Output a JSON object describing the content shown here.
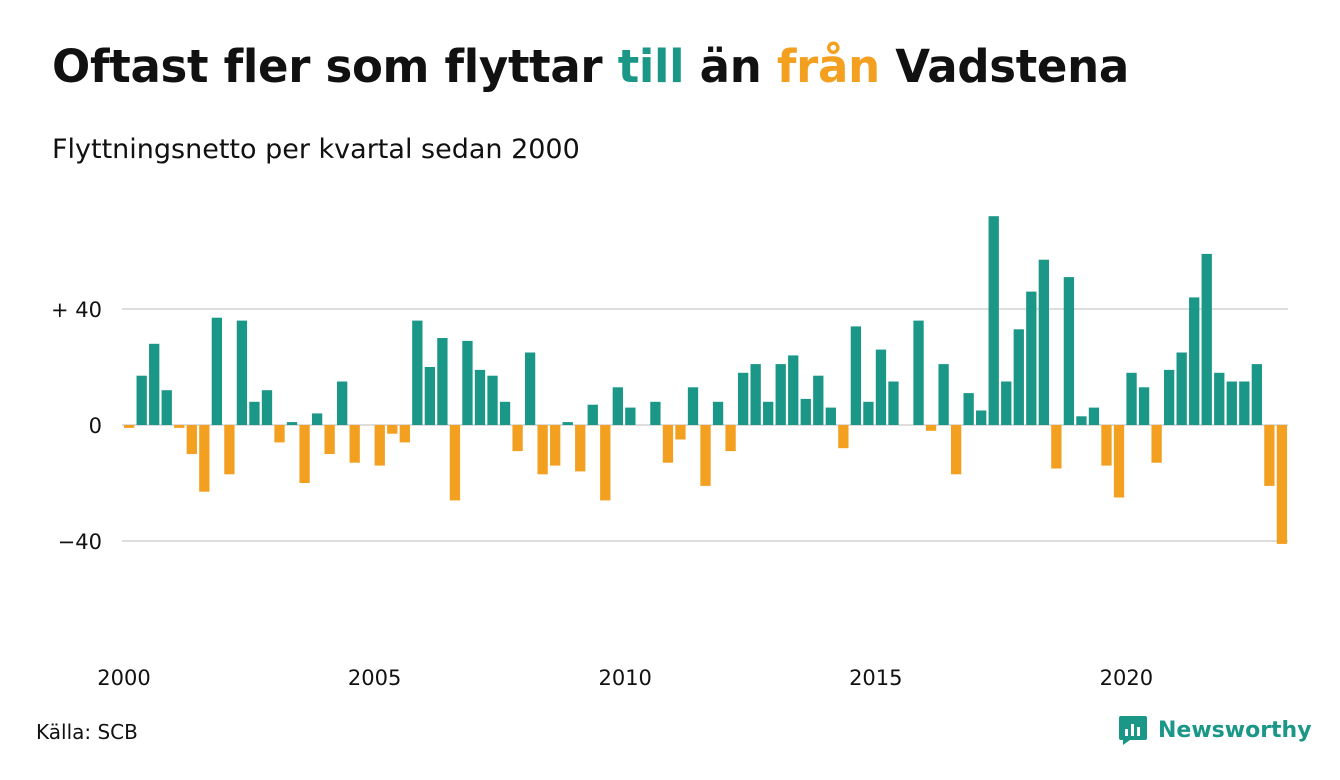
{
  "header": {
    "title_part1": "Oftast fler som flyttar ",
    "title_pos": "till",
    "title_part2": " än ",
    "title_neg": "från",
    "title_part3": " Vadstena",
    "subtitle": "Flyttningsnetto per kvartal sedan 2000"
  },
  "footer": {
    "source": "Källa: SCB",
    "brand": "Newsworthy",
    "brand_icon": "newsworthy-logo-icon"
  },
  "colors": {
    "positive": "#1a9787",
    "negative": "#f3a020",
    "grid": "#dddddd",
    "text": "#111111"
  },
  "chart_data": {
    "type": "bar",
    "title": "Oftast fler som flyttar till än från Vadstena",
    "subtitle": "Flyttningsnetto per kvartal sedan 2000",
    "x_start": "2000-Q1",
    "periods_per_year": 4,
    "x_ticks": [
      2000,
      2005,
      2010,
      2015,
      2020
    ],
    "y_ticks": [
      {
        "value": 40,
        "label": "+ 40"
      },
      {
        "value": 0,
        "label": "0"
      },
      {
        "value": -40,
        "label": "−40"
      }
    ],
    "ylim": [
      -80,
      80
    ],
    "grid": true,
    "legend": "none",
    "values": [
      -1,
      17,
      28,
      12,
      -1,
      -10,
      -23,
      37,
      -17,
      36,
      8,
      12,
      -6,
      1,
      -20,
      4,
      -10,
      15,
      -13,
      0,
      -14,
      -3,
      -6,
      36,
      20,
      30,
      -26,
      29,
      19,
      17,
      8,
      -9,
      25,
      -17,
      -14,
      1,
      -16,
      7,
      -26,
      13,
      6,
      0,
      8,
      -13,
      -5,
      13,
      -21,
      8,
      -9,
      18,
      21,
      8,
      21,
      24,
      9,
      17,
      6,
      -8,
      34,
      8,
      26,
      15,
      0,
      36,
      -2,
      21,
      -17,
      11,
      5,
      72,
      15,
      33,
      46,
      57,
      -15,
      51,
      3,
      6,
      -14,
      -25,
      18,
      13,
      -13,
      19,
      25,
      44,
      59,
      18,
      15,
      15,
      21,
      -21,
      -41
    ]
  }
}
